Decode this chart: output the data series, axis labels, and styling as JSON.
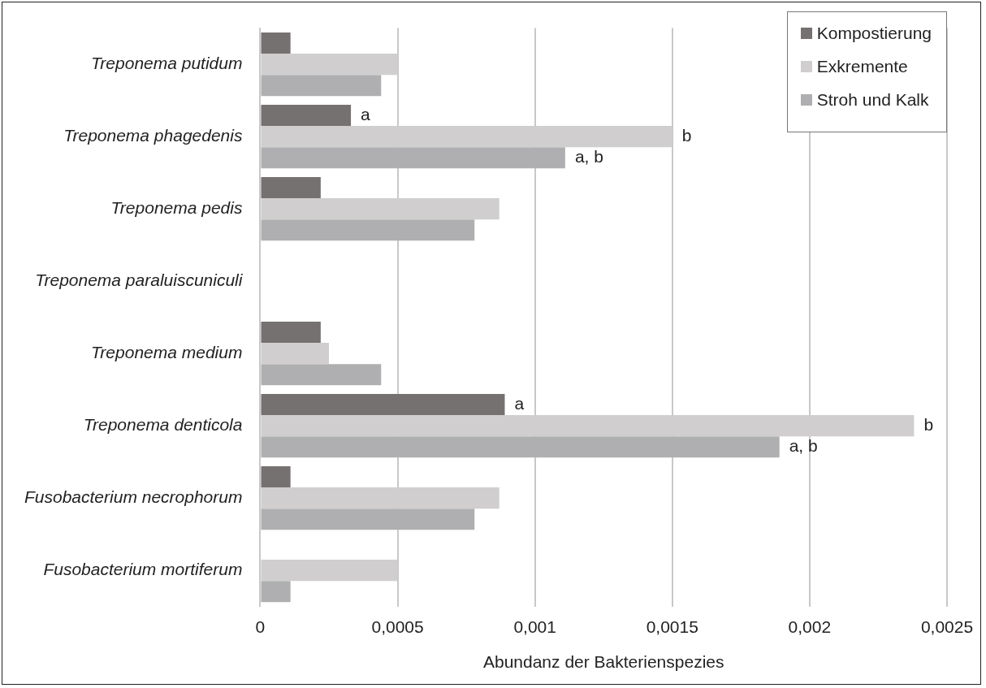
{
  "chart_data": {
    "type": "bar",
    "orientation": "horizontal",
    "xlabel": "Abundanz der Bakterienspezies",
    "categories": [
      "Treponema putidum",
      "Treponema phagedenis",
      "Treponema pedis",
      "Treponema paraluiscuniculi",
      "Treponema medium",
      "Treponema denticola",
      "Fusobacterium necrophorum",
      "Fusobacterium mortiferum"
    ],
    "series": [
      {
        "name": "Kompostierung",
        "color": "#767171",
        "values": [
          0.00011,
          0.00033,
          0.00022,
          0,
          0.00022,
          0.00089,
          0.00011,
          0
        ],
        "value_labels": [
          null,
          "a",
          null,
          null,
          null,
          "a",
          null,
          null
        ]
      },
      {
        "name": "Exkremente",
        "color": "#d0cece",
        "values": [
          0.0005,
          0.0015,
          0.00087,
          0,
          0.00025,
          0.00238,
          0.00087,
          0.0005
        ],
        "value_labels": [
          null,
          "b",
          null,
          null,
          null,
          "b",
          null,
          null
        ]
      },
      {
        "name": "Stroh und Kalk",
        "color": "#afafb1",
        "values": [
          0.00044,
          0.00111,
          0.00078,
          0,
          0.00044,
          0.00189,
          0.00078,
          0.00011
        ],
        "value_labels": [
          null,
          "a, b",
          null,
          null,
          null,
          "a, b",
          null,
          null
        ]
      }
    ],
    "xlim": [
      0,
      0.0025
    ],
    "xticks": [
      0,
      {
        "value": 0.0005,
        "label": "0,0005"
      },
      {
        "value": 0.001,
        "label": "0,001"
      },
      {
        "value": 0.0015,
        "label": "0,0015"
      },
      {
        "value": 0.002,
        "label": "0,002"
      },
      {
        "value": 0.0025,
        "label": "0,0025"
      }
    ],
    "grid": "x",
    "legend": "top right"
  }
}
